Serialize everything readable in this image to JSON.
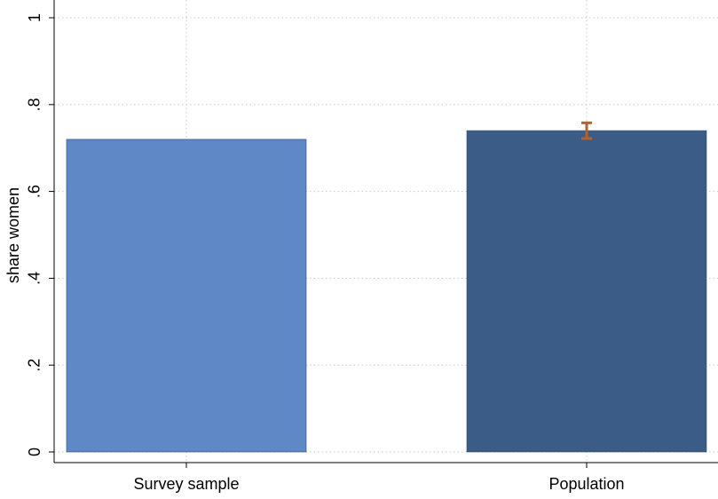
{
  "chart_data": {
    "type": "bar",
    "y_label": "share women",
    "categories": [
      "Survey sample",
      "Population"
    ],
    "values": [
      0.72,
      0.74
    ],
    "errors": [
      null,
      0.018
    ],
    "colors": [
      "#5e89c6",
      "#3b5c86"
    ],
    "error_color": "#b8602a",
    "ylim": [
      0,
      1
    ],
    "yticks": [
      0,
      {
        "value": 0.2,
        "label": ".2"
      },
      {
        "value": 0.4,
        "label": ".4"
      },
      {
        "value": 0.6,
        "label": ".6"
      },
      {
        "value": 0.8,
        "label": ".8"
      },
      1
    ],
    "grid": true
  }
}
